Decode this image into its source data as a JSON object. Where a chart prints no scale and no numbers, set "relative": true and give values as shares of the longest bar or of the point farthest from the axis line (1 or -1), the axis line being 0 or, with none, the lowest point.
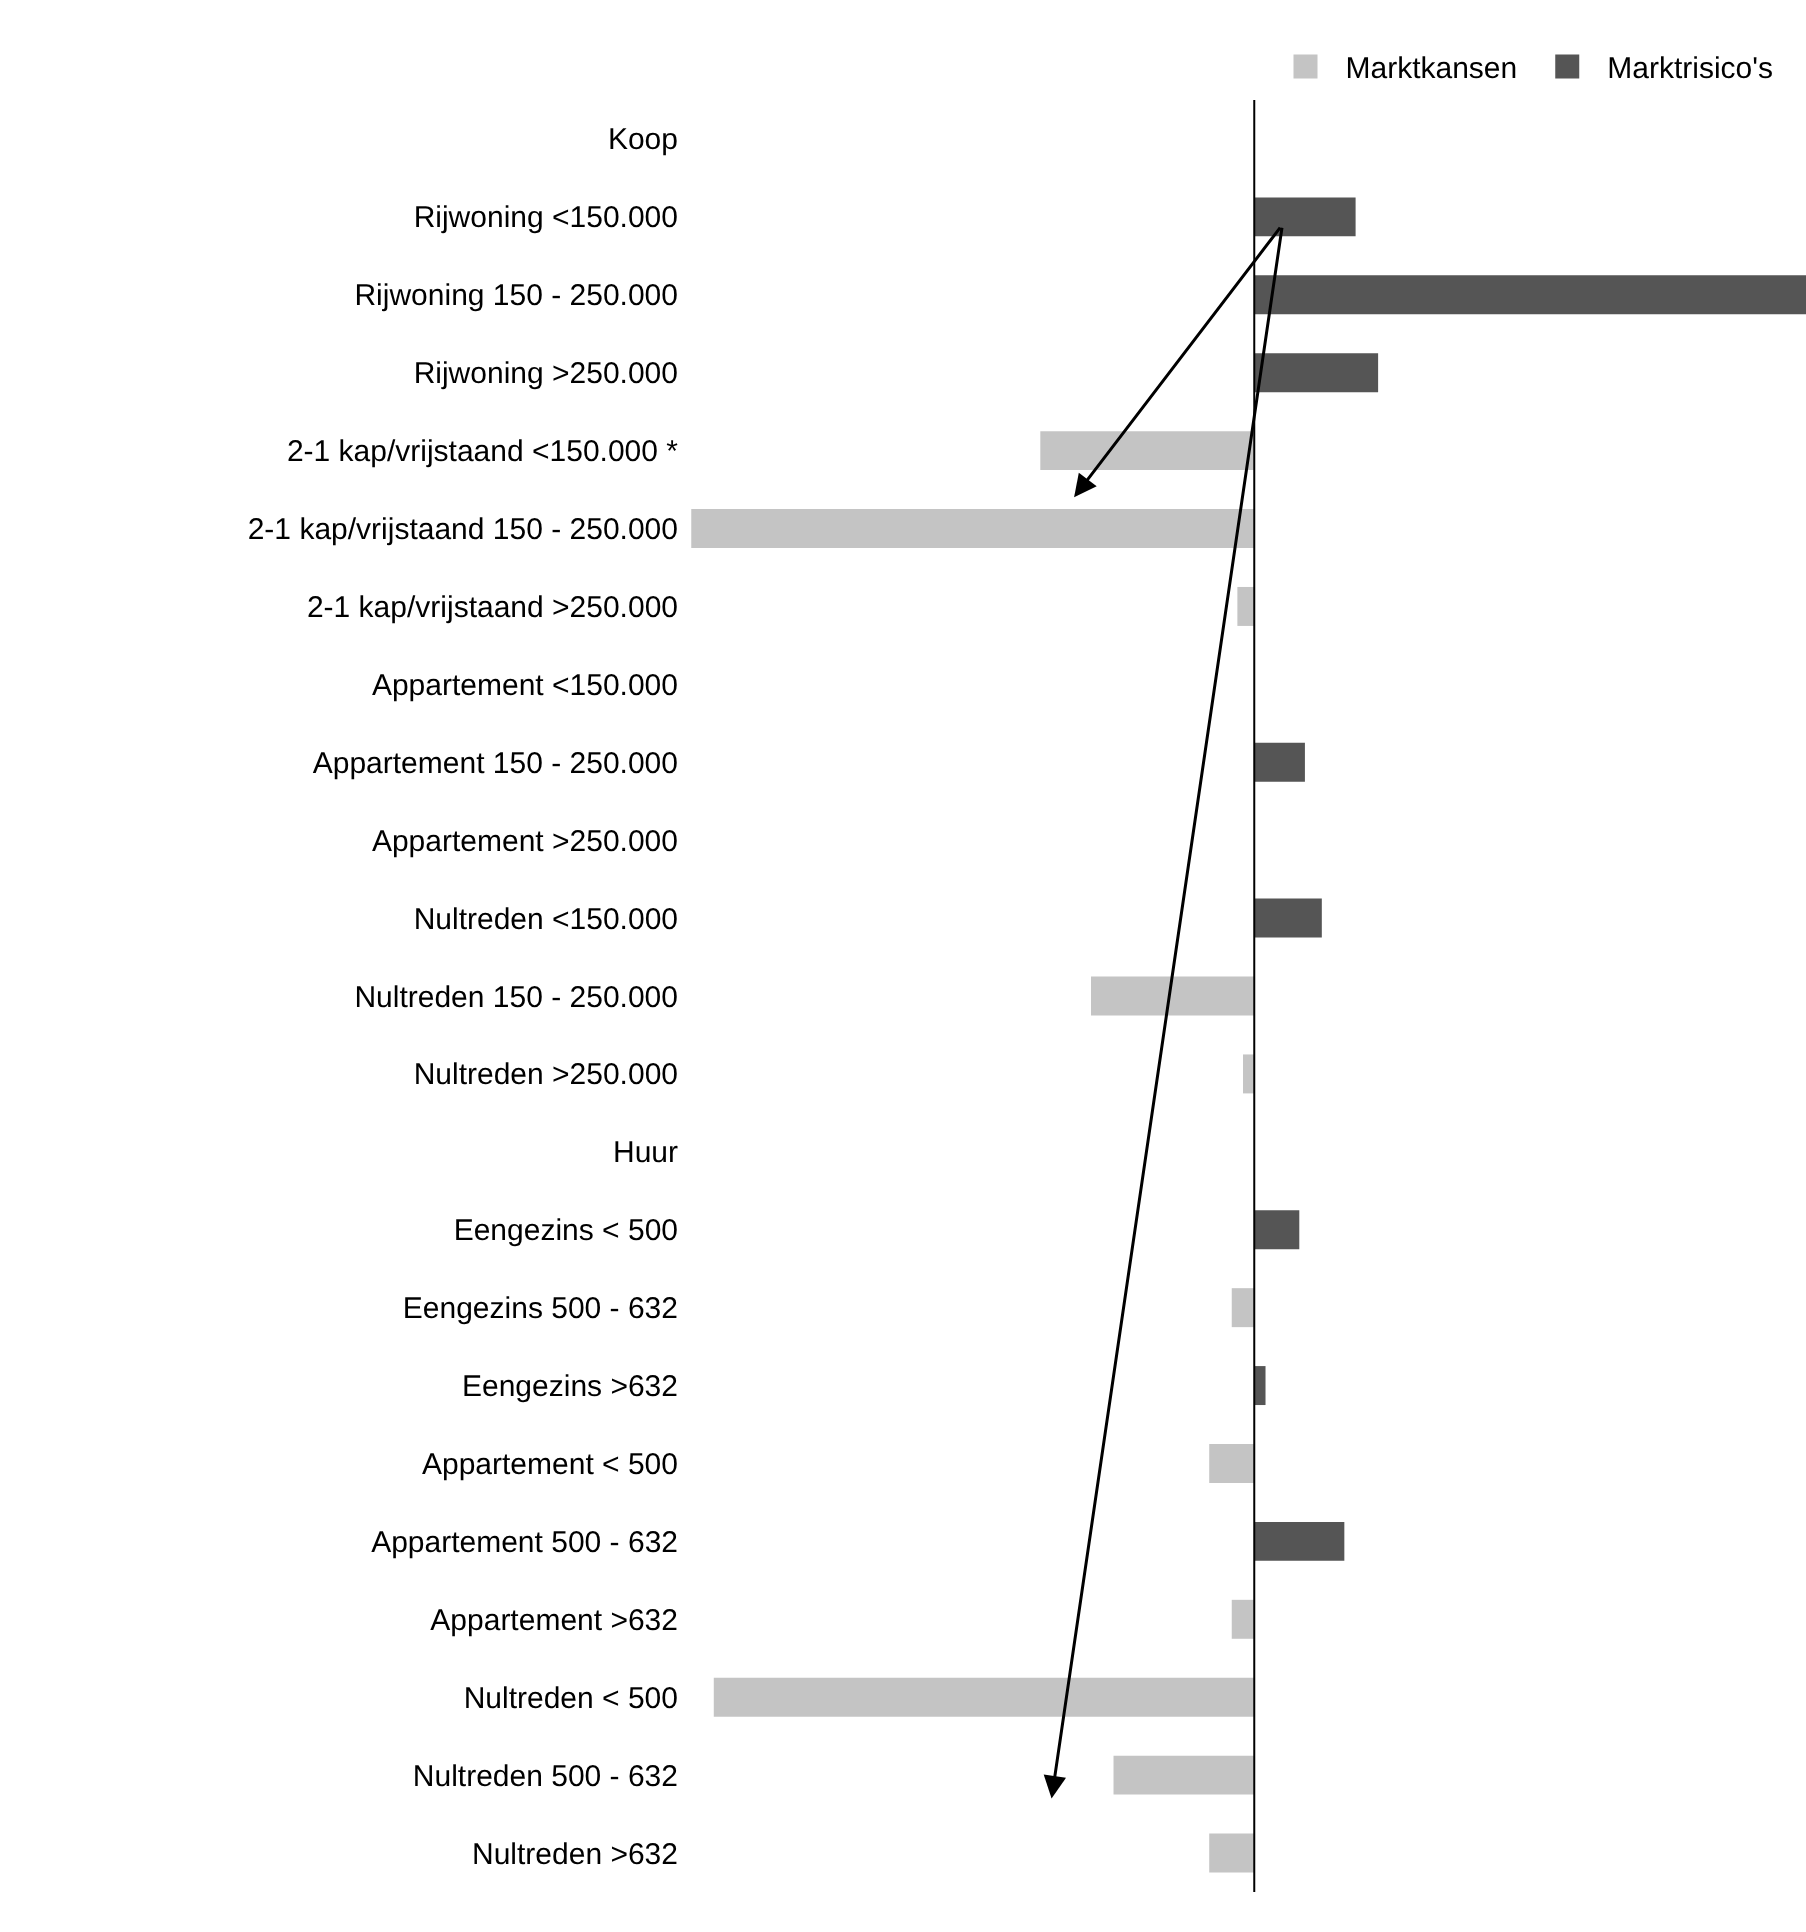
{
  "chart_data": {
    "type": "bar",
    "orientation": "horizontal",
    "relative": true,
    "legend": "top",
    "categories": [
      "Koop",
      "Rijwoning <150.000",
      "Rijwoning 150 - 250.000",
      "Rijwoning >250.000",
      "2-1 kap/vrijstaand <150.000 *",
      "2-1 kap/vrijstaand 150 - 250.000",
      "2-1 kap/vrijstaand >250.000",
      "Appartement <150.000",
      "Appartement 150 - 250.000",
      "Appartement >250.000",
      "Nultreden <150.000",
      "Nultreden 150 - 250.000",
      "Nultreden >250.000",
      "Huur",
      "Eengezins < 500",
      "Eengezins 500 - 632",
      "Eengezins >632",
      "Appartement < 500",
      "Appartement 500 - 632",
      "Appartement >632",
      "Nultreden < 500",
      "Nultreden 500 - 632",
      "Nultreden >632"
    ],
    "series": [
      {
        "name": "Marktkansen",
        "color": "#c4c4c4",
        "values": [
          null,
          null,
          null,
          null,
          -0.38,
          -1,
          -0.03,
          null,
          null,
          null,
          null,
          -0.29,
          -0.02,
          null,
          null,
          -0.04,
          null,
          -0.08,
          null,
          -0.04,
          -0.96,
          -0.25,
          -0.08
        ]
      },
      {
        "name": "Marktrisico's",
        "color": "#555555",
        "values": [
          null,
          0.18,
          0.98,
          0.22,
          null,
          null,
          null,
          null,
          0.09,
          null,
          0.12,
          null,
          null,
          null,
          0.08,
          null,
          0.02,
          null,
          0.16,
          null,
          null,
          null,
          null
        ]
      }
    ]
  }
}
